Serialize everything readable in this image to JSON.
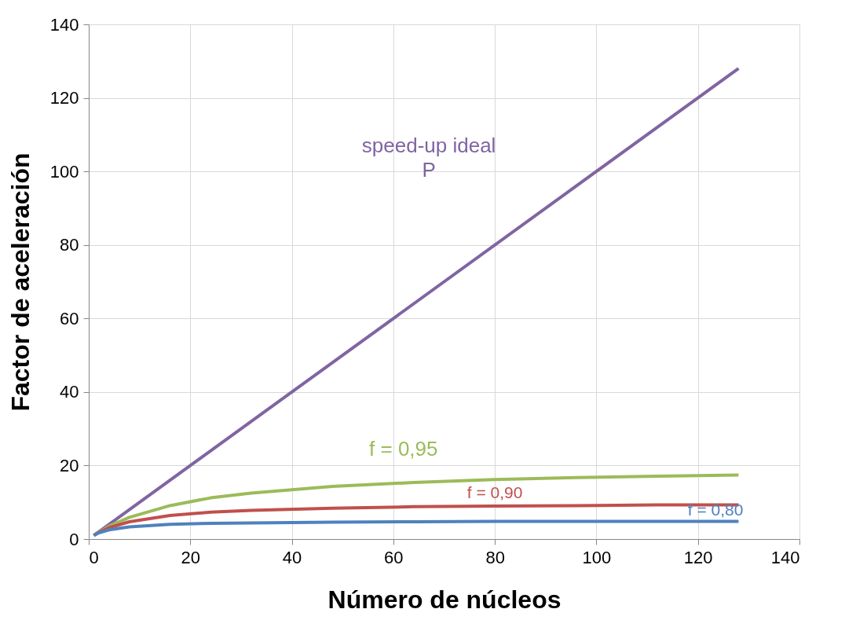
{
  "chart_data": {
    "type": "line",
    "xlabel": "Número de núcleos",
    "ylabel": "Factor de aceleración",
    "xlim": [
      0,
      140
    ],
    "xticks": [
      0,
      20,
      40,
      60,
      80,
      100,
      120,
      140
    ],
    "ylim": [
      0,
      140
    ],
    "yticks": [
      0,
      20,
      40,
      60,
      80,
      100,
      120,
      140
    ],
    "grid": true,
    "marker": "none",
    "line_style": "solid",
    "annotations": [
      "P"
    ],
    "series": [
      {
        "name": "speed-up ideal",
        "color": "#8064a2",
        "x": [
          1,
          128
        ],
        "values": [
          1,
          128
        ]
      },
      {
        "name": "f = 0,95",
        "color": "#9bbb59",
        "x": [
          1,
          2,
          4,
          8,
          16,
          24,
          32,
          48,
          64,
          80,
          96,
          112,
          128
        ],
        "values": [
          1,
          1.9,
          3.5,
          5.9,
          9.1,
          11.2,
          12.5,
          14.3,
          15.4,
          16.2,
          16.7,
          17.1,
          17.4
        ]
      },
      {
        "name": "f = 0,90",
        "color": "#c0504d",
        "x": [
          1,
          2,
          4,
          8,
          16,
          24,
          32,
          48,
          64,
          80,
          96,
          112,
          128
        ],
        "values": [
          1,
          1.8,
          3.1,
          4.7,
          6.4,
          7.3,
          7.8,
          8.4,
          8.8,
          9.0,
          9.1,
          9.3,
          9.3
        ]
      },
      {
        "name": "f = 0,80",
        "color": "#4f81bd",
        "x": [
          1,
          2,
          4,
          8,
          16,
          24,
          32,
          48,
          64,
          80,
          96,
          112,
          128
        ],
        "values": [
          1,
          1.7,
          2.5,
          3.3,
          4.0,
          4.3,
          4.4,
          4.6,
          4.7,
          4.8,
          4.8,
          4.8,
          4.8
        ]
      }
    ]
  }
}
